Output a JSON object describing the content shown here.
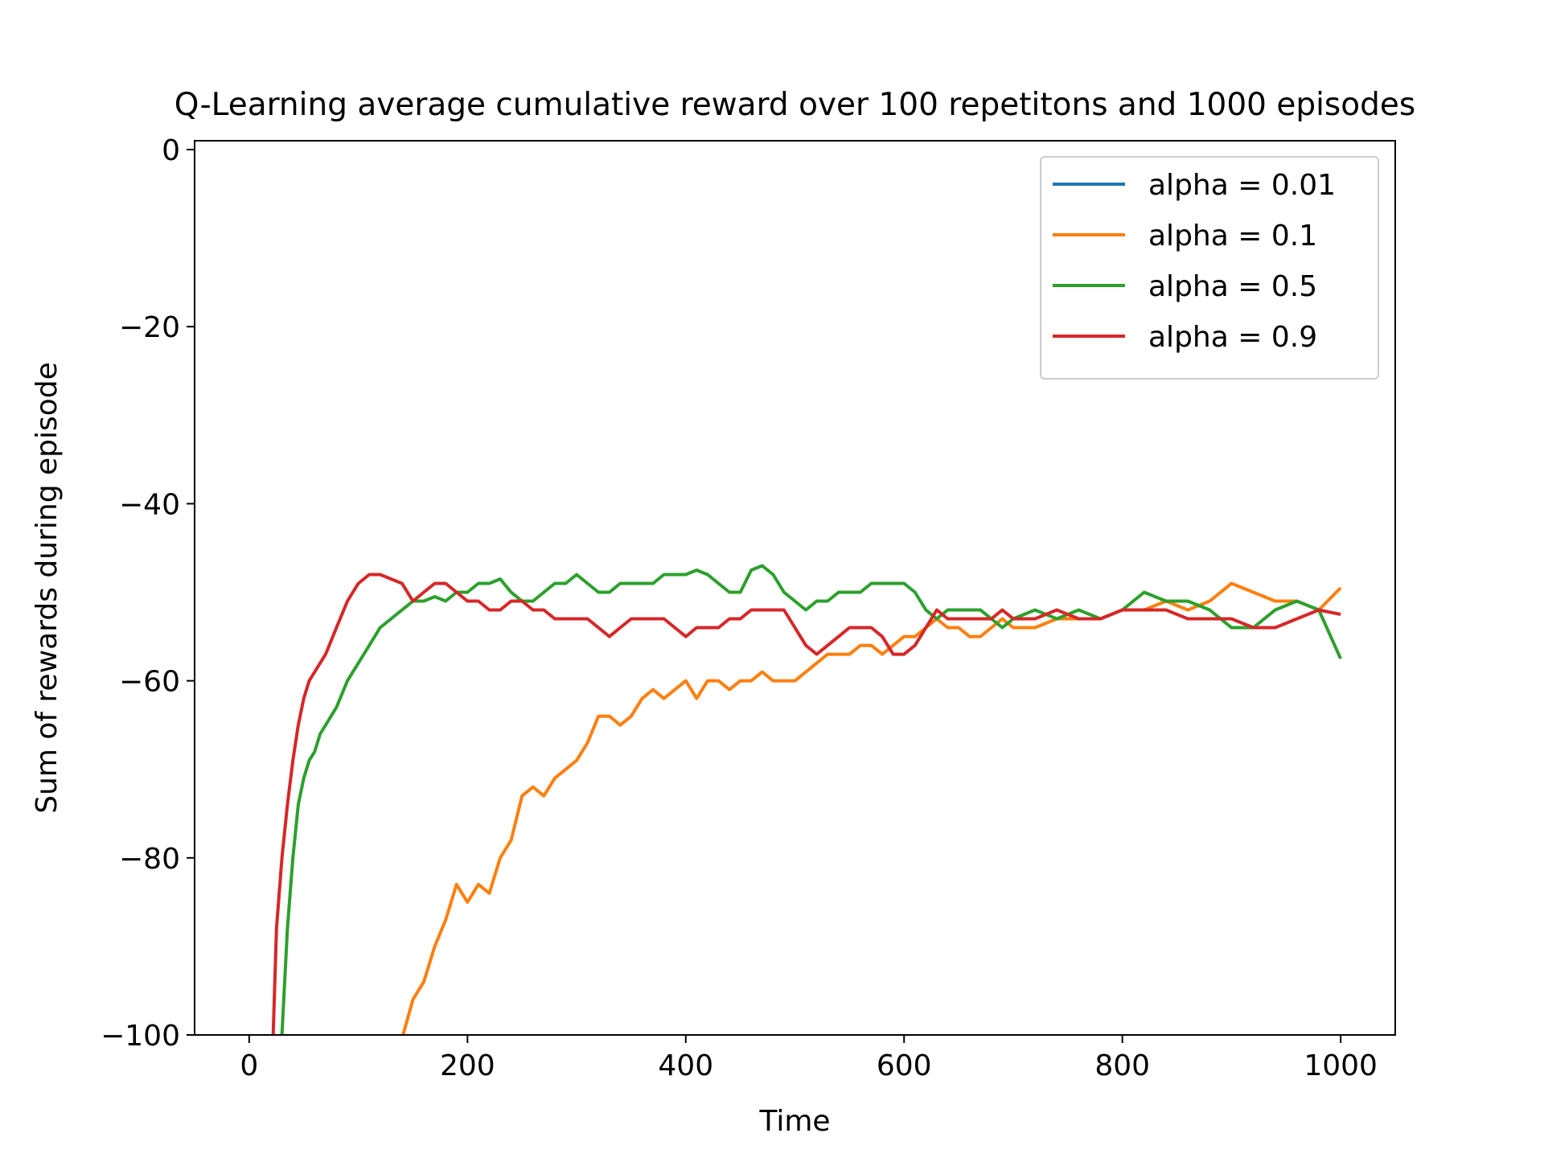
{
  "chart_data": {
    "type": "line",
    "title": "Q-Learning average cumulative reward over 100 repetitons and 1000 episodes",
    "xlabel": "Time",
    "ylabel": "Sum of rewards during episode",
    "xlim": [
      -50,
      1050
    ],
    "ylim": [
      -100,
      1
    ],
    "xticks": [
      0,
      200,
      400,
      600,
      800,
      1000
    ],
    "xtick_labels": [
      "0",
      "200",
      "400",
      "600",
      "800",
      "1000"
    ],
    "yticks": [
      0,
      -20,
      -40,
      -60,
      -80,
      -100
    ],
    "ytick_labels": [
      "0",
      "−20",
      "−40",
      "−60",
      "−80",
      "−100"
    ],
    "grid": false,
    "legend_position": "top-right",
    "series": [
      {
        "name": "alpha = 0.01",
        "color": "#1f77b4",
        "x": [],
        "y": []
      },
      {
        "name": "alpha = 0.1",
        "color": "#ff7f0e",
        "x": [
          141,
          150,
          160,
          170,
          180,
          190,
          200,
          210,
          220,
          230,
          240,
          250,
          260,
          270,
          280,
          290,
          300,
          310,
          320,
          330,
          340,
          350,
          360,
          370,
          380,
          390,
          400,
          410,
          420,
          430,
          440,
          450,
          460,
          470,
          480,
          490,
          500,
          510,
          520,
          530,
          540,
          550,
          560,
          570,
          580,
          590,
          600,
          610,
          620,
          630,
          640,
          650,
          660,
          670,
          680,
          690,
          700,
          720,
          740,
          760,
          780,
          800,
          820,
          840,
          860,
          880,
          900,
          920,
          940,
          960,
          980,
          1000
        ],
        "y": [
          -100,
          -96,
          -94,
          -90,
          -87,
          -83,
          -85,
          -83,
          -84,
          -80,
          -78,
          -73,
          -72,
          -73,
          -71,
          -70,
          -69,
          -67,
          -64,
          -64,
          -65,
          -64,
          -62,
          -61,
          -62,
          -61,
          -60,
          -62,
          -60,
          -60,
          -61,
          -60,
          -60,
          -59,
          -60,
          -60,
          -60,
          -59,
          -58,
          -57,
          -57,
          -57,
          -56,
          -56,
          -57,
          -56,
          -55,
          -55,
          -54,
          -53,
          -54,
          -54,
          -55,
          -55,
          -54,
          -53,
          -54,
          -54,
          -53,
          -53,
          -53,
          -52,
          -52,
          -51,
          -52,
          -51,
          -49,
          -50,
          -51,
          -51,
          -52,
          -49.5
        ]
      },
      {
        "name": "alpha = 0.5",
        "color": "#2ca02c",
        "x": [
          30,
          35,
          40,
          45,
          50,
          55,
          60,
          65,
          70,
          80,
          90,
          100,
          110,
          120,
          130,
          140,
          150,
          160,
          170,
          180,
          190,
          200,
          210,
          220,
          230,
          240,
          250,
          260,
          270,
          280,
          290,
          300,
          310,
          320,
          330,
          340,
          350,
          360,
          370,
          380,
          390,
          400,
          410,
          420,
          430,
          440,
          450,
          460,
          470,
          480,
          490,
          500,
          510,
          520,
          530,
          540,
          550,
          560,
          570,
          580,
          590,
          600,
          610,
          620,
          630,
          640,
          650,
          660,
          670,
          680,
          690,
          700,
          720,
          740,
          760,
          780,
          800,
          820,
          840,
          860,
          880,
          900,
          920,
          940,
          960,
          980,
          1000
        ],
        "y": [
          -100,
          -88,
          -80,
          -74,
          -71,
          -69,
          -68,
          -66,
          -65,
          -63,
          -60,
          -58,
          -56,
          -54,
          -53,
          -52,
          -51,
          -51,
          -50.5,
          -51,
          -50,
          -50,
          -49,
          -49,
          -48.5,
          -50,
          -51,
          -51,
          -50,
          -49,
          -49,
          -48,
          -49,
          -50,
          -50,
          -49,
          -49,
          -49,
          -49,
          -48,
          -48,
          -48,
          -47.5,
          -48,
          -49,
          -50,
          -50,
          -47.5,
          -47,
          -48,
          -50,
          -51,
          -52,
          -51,
          -51,
          -50,
          -50,
          -50,
          -49,
          -49,
          -49,
          -49,
          -50,
          -52,
          -53,
          -52,
          -52,
          -52,
          -52,
          -53,
          -54,
          -53,
          -52,
          -53,
          -52,
          -53,
          -52,
          -50,
          -51,
          -51,
          -52,
          -54,
          -54,
          -52,
          -51,
          -52,
          -57.5
        ]
      },
      {
        "name": "alpha = 0.9",
        "color": "#d62728",
        "x": [
          22,
          25,
          30,
          35,
          40,
          45,
          50,
          55,
          60,
          70,
          80,
          90,
          100,
          110,
          120,
          130,
          140,
          150,
          160,
          170,
          180,
          190,
          200,
          210,
          220,
          230,
          240,
          250,
          260,
          270,
          280,
          290,
          300,
          310,
          320,
          330,
          340,
          350,
          360,
          370,
          380,
          390,
          400,
          410,
          420,
          430,
          440,
          450,
          460,
          470,
          480,
          490,
          500,
          510,
          520,
          530,
          540,
          550,
          560,
          570,
          580,
          590,
          600,
          610,
          620,
          630,
          640,
          650,
          660,
          670,
          680,
          690,
          700,
          720,
          740,
          760,
          780,
          800,
          820,
          840,
          860,
          880,
          900,
          920,
          940,
          960,
          980,
          1000
        ],
        "y": [
          -100,
          -88,
          -80,
          -74,
          -69,
          -65,
          -62,
          -60,
          -59,
          -57,
          -54,
          -51,
          -49,
          -48,
          -48,
          -48.5,
          -49,
          -51,
          -50,
          -49,
          -49,
          -50,
          -51,
          -51,
          -52,
          -52,
          -51,
          -51,
          -52,
          -52,
          -53,
          -53,
          -53,
          -53,
          -54,
          -55,
          -54,
          -53,
          -53,
          -53,
          -53,
          -54,
          -55,
          -54,
          -54,
          -54,
          -53,
          -53,
          -52,
          -52,
          -52,
          -52,
          -54,
          -56,
          -57,
          -56,
          -55,
          -54,
          -54,
          -54,
          -55,
          -57,
          -57,
          -56,
          -54,
          -52,
          -53,
          -53,
          -53,
          -53,
          -53,
          -52,
          -53,
          -53,
          -52,
          -53,
          -53,
          -52,
          -52,
          -52,
          -53,
          -53,
          -53,
          -54,
          -54,
          -53,
          -52,
          -52.5
        ]
      }
    ]
  }
}
